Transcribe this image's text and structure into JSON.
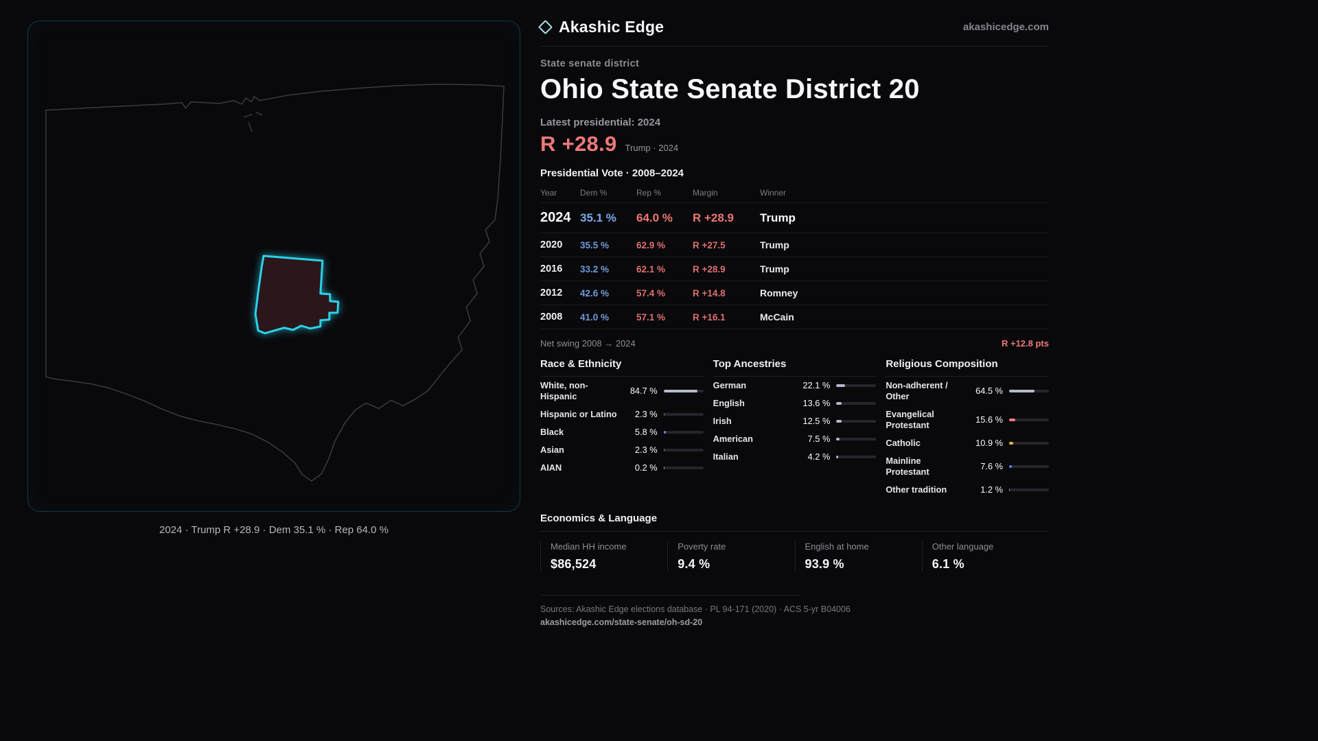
{
  "brand": {
    "name": "Akashic Edge",
    "site": "akashicedge.com"
  },
  "map": {
    "region": "Ohio",
    "caption": "2024 · Trump R +28.9 · Dem 35.1 % · Rep 64.0 %",
    "district_outline_color": "#2bd2e9"
  },
  "header": {
    "kicker": "State senate district",
    "title": "Ohio State Senate District 20",
    "latest_label": "Latest presidential: 2024",
    "headline_margin": "R +28.9",
    "headline_note": "Trump · 2024"
  },
  "vote_table": {
    "title": "Presidential Vote · 2008–2024",
    "columns": [
      "Year",
      "Dem %",
      "Rep %",
      "Margin",
      "Winner"
    ],
    "rows": [
      {
        "year": "2024",
        "dem": "35.1 %",
        "rep": "64.0 %",
        "margin": "R +28.9",
        "winner": "Trump"
      },
      {
        "year": "2020",
        "dem": "35.5 %",
        "rep": "62.9 %",
        "margin": "R +27.5",
        "winner": "Trump"
      },
      {
        "year": "2016",
        "dem": "33.2 %",
        "rep": "62.1 %",
        "margin": "R +28.9",
        "winner": "Trump"
      },
      {
        "year": "2012",
        "dem": "42.6 %",
        "rep": "57.4 %",
        "margin": "R +14.8",
        "winner": "Romney"
      },
      {
        "year": "2008",
        "dem": "41.0 %",
        "rep": "57.1 %",
        "margin": "R +16.1",
        "winner": "McCain"
      }
    ],
    "net_swing_label": "Net swing 2008 → 2024",
    "net_swing_value": "R +12.8 pts"
  },
  "demographics": [
    {
      "title": "Race & Ethnicity",
      "rows": [
        {
          "label": "White, non-Hispanic",
          "value": "84.7 %",
          "pct": 84.7,
          "color": "#b6bac9"
        },
        {
          "label": "Hispanic or Latino",
          "value": "2.3 %",
          "pct": 2.3,
          "color": "#e8953f"
        },
        {
          "label": "Black",
          "value": "5.8 %",
          "pct": 5.8,
          "color": "#7d82f0"
        },
        {
          "label": "Asian",
          "value": "2.3 %",
          "pct": 2.3,
          "color": "#35c9a8"
        },
        {
          "label": "AIAN",
          "value": "0.2 %",
          "pct": 0.2,
          "color": "#b6bac9"
        }
      ]
    },
    {
      "title": "Top Ancestries",
      "rows": [
        {
          "label": "German",
          "value": "22.1 %",
          "pct": 22.1,
          "color": "#b6bac9"
        },
        {
          "label": "English",
          "value": "13.6 %",
          "pct": 13.6,
          "color": "#b6bac9"
        },
        {
          "label": "Irish",
          "value": "12.5 %",
          "pct": 12.5,
          "color": "#b6bac9"
        },
        {
          "label": "American",
          "value": "7.5 %",
          "pct": 7.5,
          "color": "#b6bac9"
        },
        {
          "label": "Italian",
          "value": "4.2 %",
          "pct": 4.2,
          "color": "#b6bac9"
        }
      ]
    },
    {
      "title": "Religious Composition",
      "rows": [
        {
          "label": "Non-adherent / Other",
          "value": "64.5 %",
          "pct": 64.5,
          "color": "#b6bac9"
        },
        {
          "label": "Evangelical Protestant",
          "value": "15.6 %",
          "pct": 15.6,
          "color": "#ef7d86"
        },
        {
          "label": "Catholic",
          "value": "10.9 %",
          "pct": 10.9,
          "color": "#e9b83a"
        },
        {
          "label": "Mainline Protestant",
          "value": "7.6 %",
          "pct": 7.6,
          "color": "#5d87ef"
        },
        {
          "label": "Other tradition",
          "value": "1.2 %",
          "pct": 1.2,
          "color": "#b6bac9"
        }
      ]
    }
  ],
  "economics": {
    "title": "Economics & Language",
    "stats": [
      {
        "label": "Median HH income",
        "value": "$86,524"
      },
      {
        "label": "Poverty rate",
        "value": "9.4 %"
      },
      {
        "label": "English at home",
        "value": "93.9 %"
      },
      {
        "label": "Other language",
        "value": "6.1 %"
      }
    ]
  },
  "footer": {
    "sources": "Sources: Akashic Edge elections database · PL 94-171 (2020) · ACS 5-yr B04006",
    "permalink": "akashicedge.com/state-senate/oh-sd-20"
  }
}
